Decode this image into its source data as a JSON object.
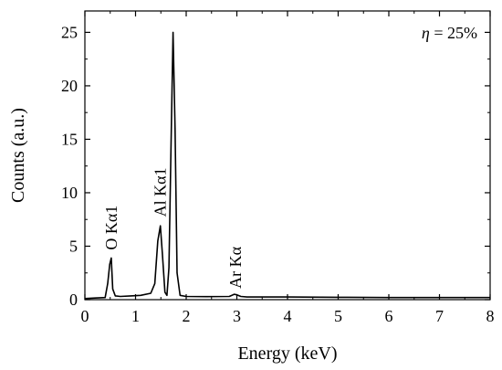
{
  "chart_data": {
    "type": "line",
    "title": "",
    "xlabel": "Energy (keV)",
    "ylabel": "Counts (a.u.)",
    "xlim": [
      0,
      8
    ],
    "ylim": [
      0,
      27
    ],
    "x_ticks": [
      0,
      1,
      2,
      3,
      4,
      5,
      6,
      7,
      8
    ],
    "y_ticks": [
      0,
      5,
      10,
      15,
      20,
      25
    ],
    "grid": false,
    "annotation": {
      "symbol": "η",
      "text": " = 25%"
    },
    "peak_labels": [
      {
        "text": "O Kα1",
        "x": 0.52,
        "y": 4.3
      },
      {
        "text": "Al Kα1",
        "x": 1.49,
        "y": 7.4
      },
      {
        "text": "Ar Kα",
        "x": 2.97,
        "y": 0.7
      }
    ],
    "series": [
      {
        "x": [
          0,
          0.2,
          0.4,
          0.45,
          0.49,
          0.52,
          0.55,
          0.6,
          0.7,
          0.9,
          1.1,
          1.3,
          1.38,
          1.44,
          1.49,
          1.53,
          1.58,
          1.62,
          1.66,
          1.7,
          1.74,
          1.78,
          1.82,
          1.88,
          2.0,
          2.4,
          2.85,
          2.95,
          3.0,
          3.08,
          3.2,
          4,
          5,
          6,
          7,
          8
        ],
        "y": [
          0.1,
          0.15,
          0.2,
          1.5,
          3.3,
          3.9,
          1.0,
          0.35,
          0.3,
          0.35,
          0.4,
          0.6,
          1.5,
          5.5,
          6.9,
          4.3,
          0.7,
          0.4,
          3.0,
          14.0,
          25.0,
          16.0,
          2.5,
          0.4,
          0.3,
          0.28,
          0.3,
          0.5,
          0.45,
          0.3,
          0.25,
          0.25,
          0.22,
          0.2,
          0.2,
          0.2
        ]
      }
    ]
  }
}
